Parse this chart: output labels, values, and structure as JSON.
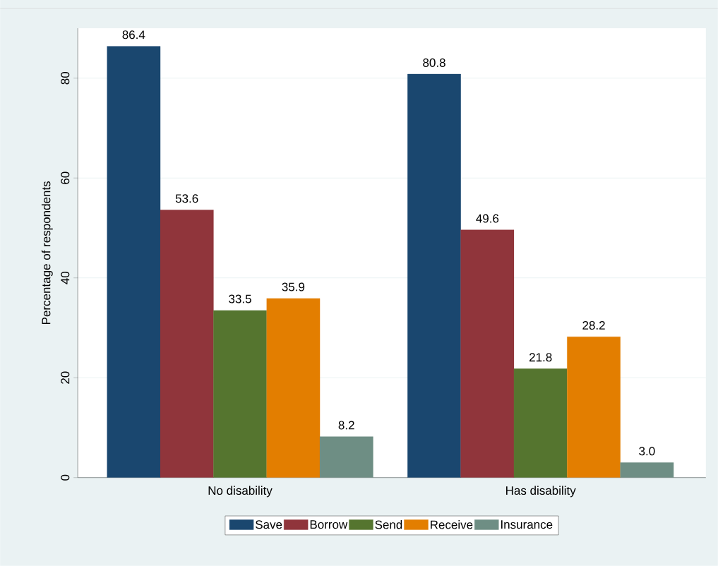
{
  "chart_data": {
    "type": "bar",
    "ylabel": "Percentage of respondents",
    "categories": [
      "No disability",
      "Has disability"
    ],
    "series": [
      {
        "name": "Save",
        "color": "#1a476f",
        "values": [
          86.4,
          80.8
        ],
        "value_labels": [
          "86.4",
          "80.8"
        ]
      },
      {
        "name": "Borrow",
        "color": "#90353b",
        "values": [
          53.6,
          49.6
        ],
        "value_labels": [
          "53.6",
          "49.6"
        ]
      },
      {
        "name": "Send",
        "color": "#55752f",
        "values": [
          33.5,
          21.8
        ],
        "value_labels": [
          "33.5",
          "21.8"
        ]
      },
      {
        "name": "Receive",
        "color": "#e37e00",
        "values": [
          35.9,
          28.2
        ],
        "value_labels": [
          "35.9",
          "28.2"
        ]
      },
      {
        "name": "Insurance",
        "color": "#6e8e84",
        "values": [
          8.2,
          3.0
        ],
        "value_labels": [
          "8.2",
          "3.0"
        ]
      }
    ],
    "ylim": [
      0,
      90
    ],
    "yticks": [
      0,
      20,
      40,
      60,
      80
    ],
    "grid": "y",
    "legend": "bottom"
  }
}
